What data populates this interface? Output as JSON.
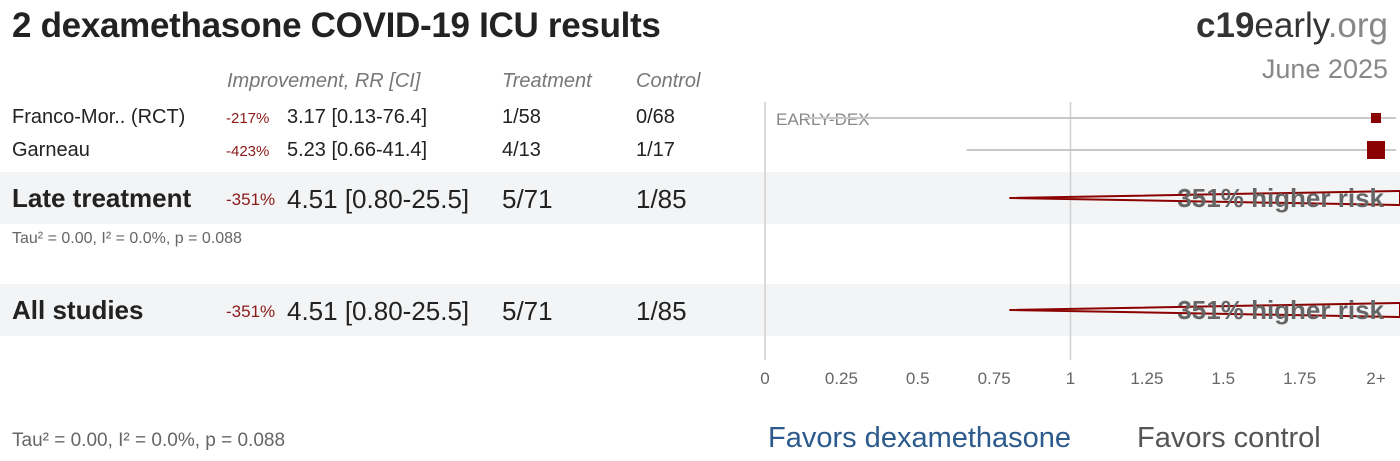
{
  "title": "2 dexamethasone COVID-19 ICU results",
  "brand": {
    "c19": "c19",
    "early": "early",
    "org": ".org"
  },
  "date": "June 2025",
  "headers": {
    "improvement": "Improvement, RR [CI]",
    "treatment": "Treatment",
    "control": "Control"
  },
  "studies": [
    {
      "name": "Franco-Mor.. (RCT)",
      "pct": "-217%",
      "rr_text": "3.17 [0.13-76.4]",
      "treatment": "1/58",
      "control": "0/68"
    },
    {
      "name": "Garneau",
      "pct": "-423%",
      "rr_text": "5.23 [0.66-41.4]",
      "treatment": "4/13",
      "control": "1/17"
    }
  ],
  "late": {
    "name": "Late treatment",
    "pct": "-351%",
    "rr_text": "4.51 [0.80-25.5]",
    "treatment": "5/71",
    "control": "1/85",
    "het": "Tau² = 0.00, I² = 0.0%, p = 0.088"
  },
  "all": {
    "name": "All studies",
    "pct": "-351%",
    "rr_text": "4.51 [0.80-25.5]",
    "treatment": "5/71",
    "control": "1/85",
    "het": "Tau² = 0.00, I² = 0.0%, p = 0.088"
  },
  "favors": {
    "left": "Favors dexamethasone",
    "right": "Favors control"
  },
  "colors": {
    "marker": "#8b0000",
    "favors_left": "#2c5a8c",
    "band": "#f3f4f5"
  },
  "chart_data": {
    "type": "forest",
    "xlim": [
      0,
      2
    ],
    "ticks": [
      "0",
      "0.25",
      "0.5",
      "0.75",
      "1",
      "1.25",
      "1.5",
      "1.75",
      "2+"
    ],
    "tick_values": [
      0,
      0.25,
      0.5,
      0.75,
      1,
      1.25,
      1.5,
      1.75,
      2
    ],
    "reference_line": 1,
    "group_label": "EARLY-DEX",
    "studies": [
      {
        "name": "Franco-Mor.. (RCT)",
        "rr": 3.17,
        "lo": 0.13,
        "hi": 76.4
      },
      {
        "name": "Garneau",
        "rr": 5.23,
        "lo": 0.66,
        "hi": 41.4
      }
    ],
    "summaries": [
      {
        "name": "Late treatment",
        "rr": 4.51,
        "lo": 0.8,
        "hi": 25.5,
        "label": "351% higher risk"
      },
      {
        "name": "All studies",
        "rr": 4.51,
        "lo": 0.8,
        "hi": 25.5,
        "label": "351% higher risk"
      }
    ]
  }
}
